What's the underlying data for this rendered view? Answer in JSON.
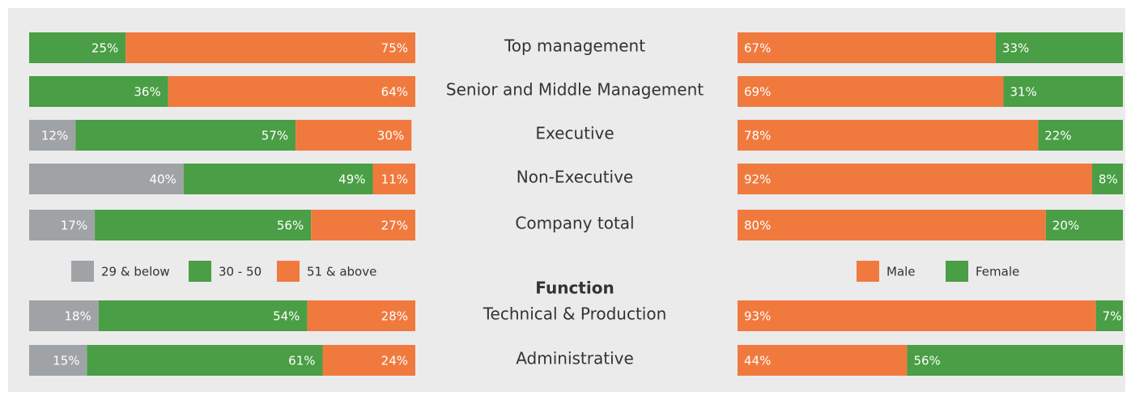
{
  "chart_data": [
    {
      "type": "stacked-bar",
      "categories": [
        "Top management",
        "Senior and Middle Management",
        "Executive",
        "Non-Executive",
        "Company total",
        "Technical & Production",
        "Administrative"
      ],
      "annotation": "Function",
      "xlim": [
        0,
        100
      ],
      "series": [
        {
          "name": "29 & below",
          "color": "#a0a3a6",
          "values": [
            null,
            null,
            12,
            40,
            17,
            18,
            15
          ],
          "value_labels": [
            null,
            null,
            "12%",
            "40%",
            "17%",
            "18%",
            "15%"
          ]
        },
        {
          "name": "30 - 50",
          "color": "#4a9e45",
          "values": [
            25,
            36,
            57,
            49,
            56,
            54,
            61
          ],
          "value_labels": [
            "25%",
            "36%",
            "57%",
            "49%",
            "56%",
            "54%",
            "61%"
          ]
        },
        {
          "name": "51 & above",
          "color": "#f07a3e",
          "values": [
            75,
            64,
            30,
            11,
            27,
            28,
            24
          ],
          "value_labels": [
            "75%",
            "64%",
            "30%",
            "11%",
            "27%",
            "28%",
            "24%"
          ]
        }
      ]
    },
    {
      "type": "stacked-bar",
      "xlim": [
        0,
        100
      ],
      "series": [
        {
          "name": "Male",
          "color": "#f07a3e",
          "values": [
            67,
            69,
            78,
            92,
            80,
            93,
            44
          ],
          "value_labels": [
            "67%",
            "69%",
            "78%",
            "92%",
            "80%",
            "93%",
            "44%"
          ]
        },
        {
          "name": "Female",
          "color": "#4a9e45",
          "values": [
            33,
            31,
            22,
            8,
            20,
            7,
            56
          ],
          "value_labels": [
            "33%",
            "31%",
            "22%",
            "8%",
            "20%",
            "7%",
            "56%"
          ]
        }
      ]
    }
  ]
}
